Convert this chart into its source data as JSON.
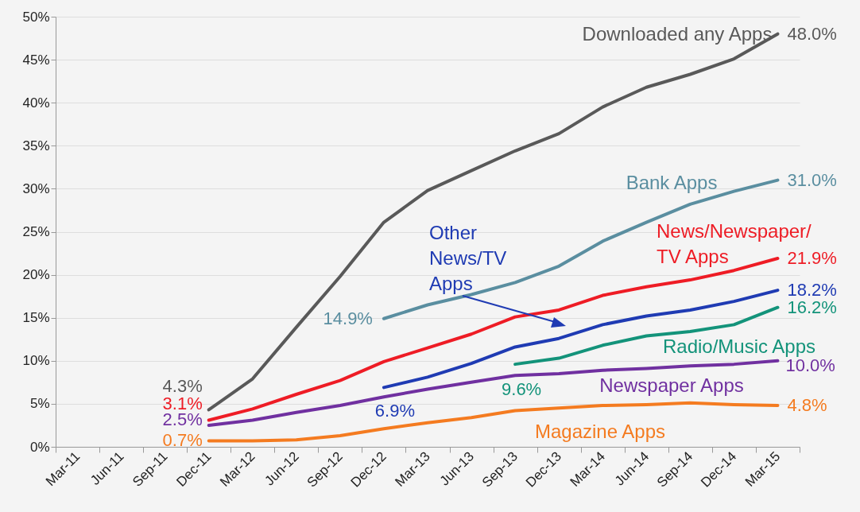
{
  "chart_data": {
    "type": "line",
    "categories": [
      "Mar-11",
      "Jun-11",
      "Sep-11",
      "Dec-11",
      "Mar-12",
      "Jun-12",
      "Sep-12",
      "Dec-12",
      "Mar-13",
      "Jun-13",
      "Sep-13",
      "Dec-13",
      "Mar-14",
      "Jun-14",
      "Sep-14",
      "Dec-14",
      "Mar-15"
    ],
    "series": [
      {
        "name": "Downloaded any Apps",
        "color": "#595959",
        "values": [
          null,
          null,
          null,
          4.3,
          7.9,
          13.9,
          19.8,
          26.1,
          29.8,
          32.1,
          34.4,
          36.4,
          39.5,
          41.8,
          43.3,
          45.1,
          48.0
        ],
        "value_labels": [
          null,
          null,
          null,
          "4.3%",
          null,
          null,
          null,
          null,
          null,
          null,
          null,
          null,
          null,
          null,
          null,
          null,
          "48.0%"
        ]
      },
      {
        "name": "Bank Apps",
        "color": "#5a8ea0",
        "values": [
          null,
          null,
          null,
          null,
          null,
          null,
          null,
          14.9,
          16.5,
          17.7,
          19.1,
          21.0,
          23.9,
          26.1,
          28.2,
          29.7,
          31.0
        ],
        "value_labels": [
          null,
          null,
          null,
          null,
          null,
          null,
          null,
          "14.9%",
          null,
          null,
          null,
          null,
          null,
          null,
          null,
          null,
          "31.0%"
        ]
      },
      {
        "name": "News/Newspaper/ TV Apps",
        "color": "#ee1c25",
        "values": [
          null,
          null,
          null,
          3.1,
          4.4,
          6.1,
          7.7,
          9.9,
          11.5,
          13.1,
          15.1,
          15.9,
          17.6,
          18.6,
          19.4,
          20.5,
          21.9
        ],
        "value_labels": [
          null,
          null,
          null,
          "3.1%",
          null,
          null,
          null,
          null,
          null,
          null,
          null,
          null,
          null,
          null,
          null,
          null,
          "21.9%"
        ]
      },
      {
        "name": "Other News/TV Apps",
        "color": "#1f3bb3",
        "values": [
          null,
          null,
          null,
          null,
          null,
          null,
          null,
          6.9,
          8.1,
          9.7,
          11.6,
          12.6,
          14.2,
          15.2,
          15.9,
          16.9,
          18.2
        ],
        "value_labels": [
          null,
          null,
          null,
          null,
          null,
          null,
          null,
          "6.9%",
          null,
          null,
          null,
          null,
          null,
          null,
          null,
          null,
          "18.2%"
        ]
      },
      {
        "name": "Radio/Music Apps",
        "color": "#13937a",
        "values": [
          null,
          null,
          null,
          null,
          null,
          null,
          null,
          null,
          null,
          null,
          9.6,
          10.3,
          11.8,
          12.9,
          13.4,
          14.2,
          16.2
        ],
        "value_labels": [
          null,
          null,
          null,
          null,
          null,
          null,
          null,
          null,
          null,
          null,
          "9.6%",
          null,
          null,
          null,
          null,
          null,
          "16.2%"
        ]
      },
      {
        "name": "Newspaper Apps",
        "color": "#7030a0",
        "values": [
          null,
          null,
          null,
          2.5,
          3.1,
          4.0,
          4.8,
          5.8,
          6.7,
          7.5,
          8.3,
          8.5,
          8.9,
          9.1,
          9.4,
          9.6,
          10.0
        ],
        "value_labels": [
          null,
          null,
          null,
          "2.5%",
          null,
          null,
          null,
          null,
          null,
          null,
          null,
          null,
          null,
          null,
          null,
          null,
          "10.0%"
        ]
      },
      {
        "name": "Magazine Apps",
        "color": "#f47b20",
        "values": [
          null,
          null,
          null,
          0.7,
          0.7,
          0.8,
          1.3,
          2.1,
          2.8,
          3.4,
          4.2,
          4.5,
          4.8,
          4.9,
          5.1,
          4.9,
          4.8
        ],
        "value_labels": [
          null,
          null,
          null,
          "0.7%",
          null,
          null,
          null,
          null,
          null,
          null,
          null,
          null,
          null,
          null,
          null,
          null,
          "4.8%"
        ]
      }
    ],
    "ylim": [
      0,
      50
    ],
    "yticks": [
      {
        "value": 0,
        "label": "0%"
      },
      {
        "value": 5,
        "label": "5%"
      },
      {
        "value": 10,
        "label": "10%"
      },
      {
        "value": 15,
        "label": "15%"
      },
      {
        "value": 20,
        "label": "20%"
      },
      {
        "value": 25,
        "label": "25%"
      },
      {
        "value": 30,
        "label": "30%"
      },
      {
        "value": 35,
        "label": "35%"
      },
      {
        "value": 40,
        "label": "40%"
      },
      {
        "value": 45,
        "label": "45%"
      },
      {
        "value": 50,
        "label": "50%"
      }
    ],
    "grid": "y",
    "legend": false,
    "marker": "none",
    "line_style": "solid"
  }
}
